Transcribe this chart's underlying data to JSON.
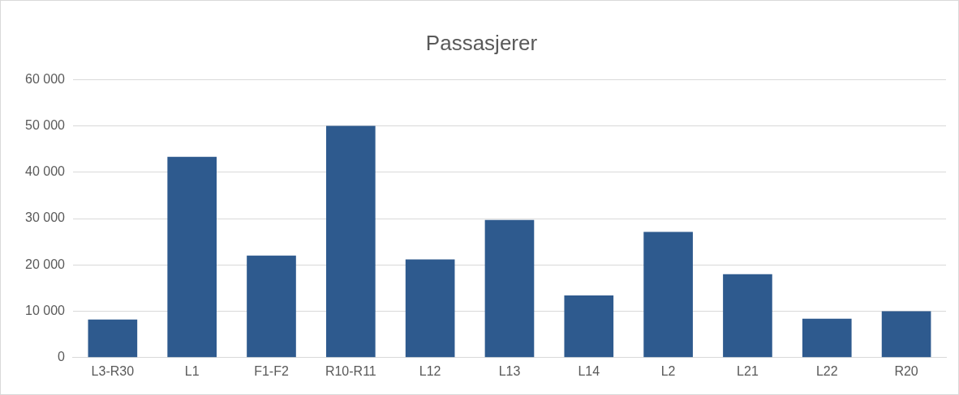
{
  "chart_data": {
    "type": "bar",
    "title": "Passasjerer",
    "categories": [
      "L3-R30",
      "L1",
      "F1-F2",
      "R10-R11",
      "L12",
      "L13",
      "L14",
      "L2",
      "L21",
      "L22",
      "R20"
    ],
    "values": [
      8200,
      43300,
      22000,
      50000,
      21200,
      29700,
      13400,
      27100,
      18000,
      8400,
      10000
    ],
    "color": "#2e5a8e",
    "ylim": [
      0,
      60000
    ],
    "yticks": [
      {
        "value": 0,
        "label": "0"
      },
      {
        "value": 10000,
        "label": "10 000"
      },
      {
        "value": 20000,
        "label": "20 000"
      },
      {
        "value": 30000,
        "label": "30 000"
      },
      {
        "value": 40000,
        "label": "40 000"
      },
      {
        "value": 50000,
        "label": "50 000"
      },
      {
        "value": 60000,
        "label": "60 000"
      }
    ],
    "grid": "y"
  }
}
